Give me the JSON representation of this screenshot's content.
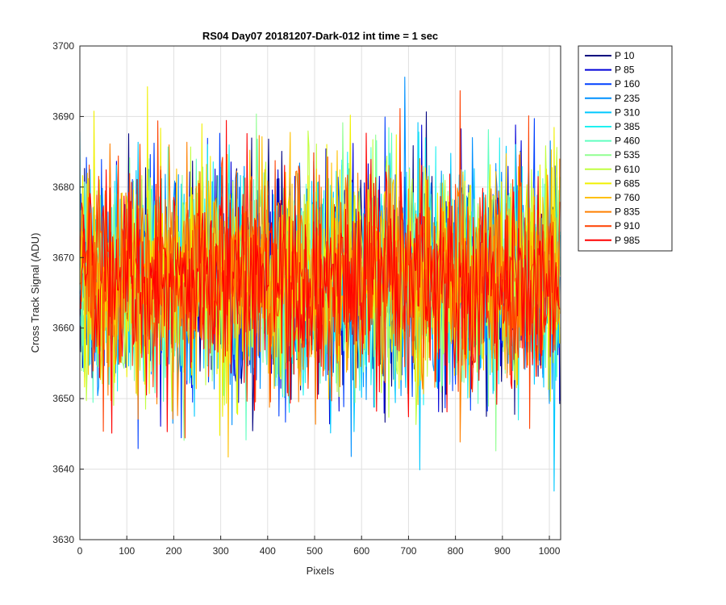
{
  "chart_data": {
    "type": "line",
    "title": "RS04 Day07 20181207-Dark-012 int time = 1 sec",
    "xlabel": "Pixels",
    "ylabel": "Cross Track Signal (ADU)",
    "xlim": [
      0,
      1024
    ],
    "ylim": [
      3630,
      3700
    ],
    "xticks": [
      0,
      100,
      200,
      300,
      400,
      500,
      600,
      700,
      800,
      900,
      1000
    ],
    "yticks": [
      3630,
      3640,
      3650,
      3660,
      3670,
      3680,
      3690,
      3700
    ],
    "grid": true,
    "legend_position": "outside-top-right",
    "noise": {
      "mean": 3667,
      "approx_range": [
        3635,
        3698
      ]
    },
    "series": [
      {
        "name": "P 10",
        "color": "#00007f"
      },
      {
        "name": "P 85",
        "color": "#0000d9"
      },
      {
        "name": "P 160",
        "color": "#0040ff"
      },
      {
        "name": "P 235",
        "color": "#0090ff"
      },
      {
        "name": "P 310",
        "color": "#00c8ff"
      },
      {
        "name": "P 385",
        "color": "#20f0f0"
      },
      {
        "name": "P 460",
        "color": "#60ffc0"
      },
      {
        "name": "P 535",
        "color": "#90ff90"
      },
      {
        "name": "P 610",
        "color": "#c0ff40"
      },
      {
        "name": "P 685",
        "color": "#f0f000"
      },
      {
        "name": "P 760",
        "color": "#ffc000"
      },
      {
        "name": "P 835",
        "color": "#ff8000"
      },
      {
        "name": "P 910",
        "color": "#ff4000"
      },
      {
        "name": "P 985",
        "color": "#ff0000"
      }
    ]
  }
}
